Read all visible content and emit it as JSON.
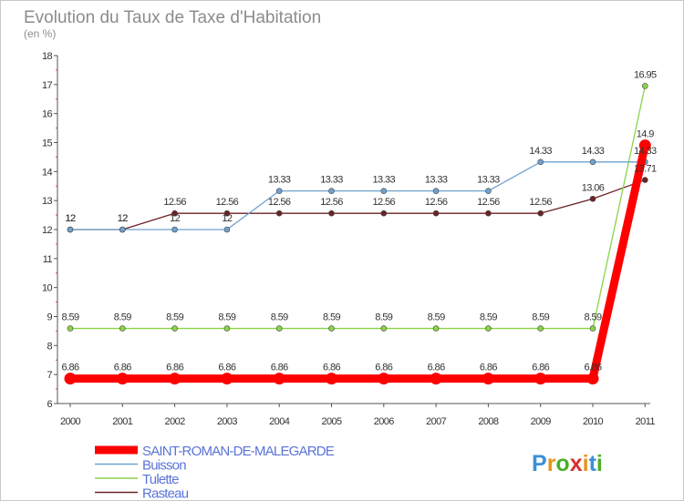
{
  "chart_data": {
    "type": "line",
    "title": "Evolution du Taux de Taxe d'Habitation",
    "subtitle": "(en %)",
    "xlabel": "",
    "ylabel": "",
    "ylim": [
      6,
      18
    ],
    "yticks": [
      "6",
      "7",
      "8",
      "9",
      "10",
      "11",
      "12",
      "13",
      "14",
      "15",
      "16",
      "17",
      "18"
    ],
    "categories": [
      "2000",
      "2001",
      "2002",
      "2003",
      "2004",
      "2005",
      "2006",
      "2007",
      "2008",
      "2009",
      "2010",
      "2011"
    ],
    "grid": false,
    "legend_position": "bottom-left",
    "series": [
      {
        "name": "Rasteau",
        "color": "#6b2326",
        "values": [
          12,
          12,
          12.56,
          12.56,
          12.56,
          12.56,
          12.56,
          12.56,
          12.56,
          12.56,
          13.06,
          13.71
        ],
        "labels": [
          "12",
          "12",
          "12.56",
          "12.56",
          "12.56",
          "12.56",
          "12.56",
          "12.56",
          "12.56",
          "12.56",
          "13.06",
          "13.71"
        ]
      },
      {
        "name": "Tulette",
        "color": "#8ad447",
        "values": [
          8.59,
          8.59,
          8.59,
          8.59,
          8.59,
          8.59,
          8.59,
          8.59,
          8.59,
          8.59,
          8.59,
          16.95
        ],
        "labels": [
          "8.59",
          "8.59",
          "8.59",
          "8.59",
          "8.59",
          "8.59",
          "8.59",
          "8.59",
          "8.59",
          "8.59",
          "8.59",
          "16.95"
        ]
      },
      {
        "name": "Buisson",
        "color": "#6fa2d0",
        "values": [
          12,
          12,
          12,
          12,
          13.33,
          13.33,
          13.33,
          13.33,
          13.33,
          14.33,
          14.33,
          14.33
        ],
        "labels": [
          "12",
          "12",
          "12",
          "12",
          "13.33",
          "13.33",
          "13.33",
          "13.33",
          "13.33",
          "14.33",
          "14.33",
          "14.33"
        ]
      },
      {
        "name": "SAINT-ROMAN-DE-MALEGARDE",
        "color": "#ff0000",
        "values": [
          6.86,
          6.86,
          6.86,
          6.86,
          6.86,
          6.86,
          6.86,
          6.86,
          6.86,
          6.86,
          6.86,
          14.9
        ],
        "labels": [
          "6.86",
          "6.86",
          "6.86",
          "6.86",
          "6.86",
          "6.86",
          "6.86",
          "6.86",
          "6.86",
          "6.86",
          "6.86",
          "14.9"
        ]
      }
    ],
    "legend": [
      {
        "name": "SAINT-ROMAN-DE-MALEGARDE",
        "color": "#ff0000",
        "text_color": "#5b74d8"
      },
      {
        "name": "Buisson",
        "color": "#6fa2d0",
        "text_color": "#5b74d8"
      },
      {
        "name": "Tulette",
        "color": "#8ad447",
        "text_color": "#5b74d8"
      },
      {
        "name": "Rasteau",
        "color": "#6b2326",
        "text_color": "#5b74d8"
      }
    ]
  },
  "logo": {
    "text": "Proxiti",
    "letters": [
      "P",
      "r",
      "o",
      "x",
      "i",
      "t",
      "i"
    ],
    "colors": [
      "#3b8fd8",
      "#e8941a",
      "#4caf2a",
      "#d83030",
      "#e8941a",
      "#3b8fd8",
      "#4caf2a"
    ]
  }
}
